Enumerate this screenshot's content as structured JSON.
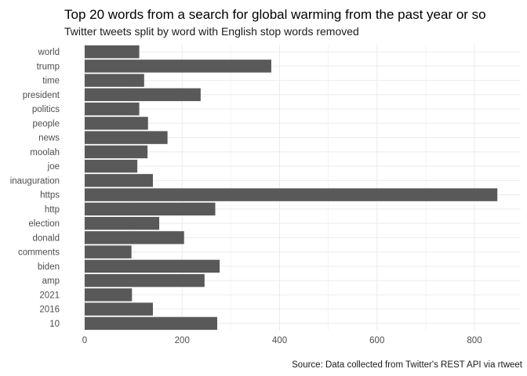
{
  "chart_data": {
    "type": "bar",
    "orientation": "horizontal",
    "title": "Top 20 words from a search for global warming from the past year or so",
    "subtitle": "Twitter tweets split by word with English stop words removed",
    "caption": "Source: Data collected from Twitter's REST API via rtweet",
    "xlabel": "",
    "ylabel": "",
    "xlim": [
      0,
      880
    ],
    "xticks": [
      0,
      200,
      400,
      600,
      800
    ],
    "grid": true,
    "bar_color": "#595959",
    "categories": [
      "world",
      "trump",
      "time",
      "president",
      "politics",
      "people",
      "news",
      "moolah",
      "joe",
      "inauguration",
      "https",
      "http",
      "election",
      "donald",
      "comments",
      "biden",
      "amp",
      "2021",
      "2016",
      "10"
    ],
    "values": [
      112,
      383,
      122,
      238,
      112,
      130,
      170,
      129,
      108,
      140,
      847,
      268,
      153,
      204,
      96,
      277,
      246,
      97,
      140,
      272
    ]
  }
}
